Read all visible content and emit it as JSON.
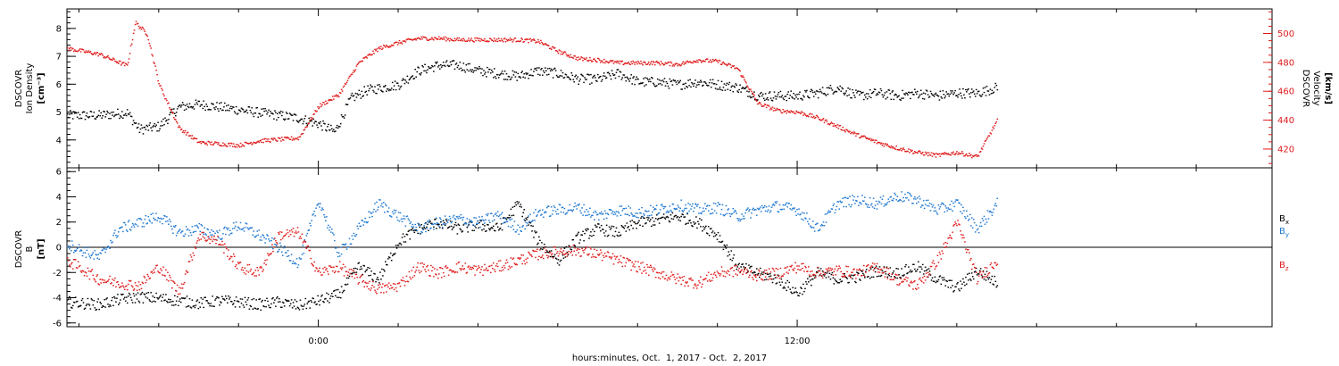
{
  "time_axis": {
    "label": "hours:minutes, Oct.  1, 2017 - Oct.  2, 2017",
    "tick_labels": [
      "0:00",
      "12:00"
    ],
    "range_hours": [
      -6.3,
      23.9
    ],
    "major_ticks_hours": [
      0,
      12
    ],
    "minor_step_hours": 2,
    "data_end_hours": 17.0
  },
  "panels": {
    "top": {
      "left_label": [
        "DSCOVR",
        "Ion Density",
        "[cm⁻³]"
      ],
      "right_label": [
        "DSCOVR",
        "Velocity",
        "[km/s]"
      ]
    },
    "bottom": {
      "left_label": [
        "DSCOVR",
        "B",
        "[nT]"
      ],
      "legend": [
        {
          "text": "B",
          "sub": "x",
          "color": "#000000"
        },
        {
          "text": "B",
          "sub": "y",
          "color": "#1f78d1"
        },
        {
          "text": "B",
          "sub": "z",
          "color": "#e01a1a"
        }
      ]
    }
  },
  "chart_data": [
    {
      "type": "scatter",
      "title": "",
      "xlabel": "hours:minutes, Oct.  1, 2017 - Oct.  2, 2017",
      "series": [
        {
          "name": "Ion Density",
          "axis": "left",
          "ylabel": "DSCOVR Ion Density [cm⁻³]",
          "ylim": [
            3.0,
            8.7
          ],
          "yticks": [
            4,
            5,
            6,
            7,
            8
          ],
          "color": "#000000",
          "x": [
            -6.3,
            -5.5,
            -4.8,
            -4.5,
            -4.0,
            -3.5,
            -3.0,
            -2.5,
            -2.0,
            -1.5,
            -1.0,
            -0.5,
            0.0,
            0.4,
            0.8,
            1.2,
            1.6,
            2.0,
            2.5,
            3.0,
            3.5,
            4.0,
            4.5,
            5.0,
            5.5,
            6.0,
            6.5,
            7.0,
            7.5,
            8.0,
            8.5,
            9.0,
            9.5,
            10.0,
            10.5,
            11.0,
            11.5,
            12.0,
            12.5,
            13.0,
            13.5,
            14.0,
            14.5,
            15.0,
            15.5,
            16.0,
            16.5,
            17.0
          ],
          "y": [
            4.9,
            4.9,
            5.0,
            4.4,
            4.5,
            5.2,
            5.3,
            5.2,
            5.1,
            5.0,
            4.9,
            4.8,
            4.6,
            4.3,
            5.5,
            5.8,
            5.9,
            6.0,
            6.5,
            6.7,
            6.7,
            6.5,
            6.4,
            6.3,
            6.5,
            6.4,
            6.2,
            6.2,
            6.4,
            6.1,
            6.1,
            6.0,
            6.1,
            6.0,
            5.9,
            5.6,
            5.6,
            5.6,
            5.7,
            5.9,
            5.6,
            5.7,
            5.6,
            5.7,
            5.6,
            5.7,
            5.7,
            5.9
          ]
        },
        {
          "name": "Velocity",
          "axis": "right",
          "ylabel": "DSCOVR Velocity [km/s]",
          "ylim": [
            407,
            517
          ],
          "yticks": [
            420,
            440,
            460,
            480,
            500
          ],
          "color": "#e01a1a",
          "x": [
            -6.3,
            -5.5,
            -4.8,
            -4.6,
            -4.3,
            -4.0,
            -3.5,
            -3.0,
            -2.5,
            -2.0,
            -1.5,
            -1.0,
            -0.5,
            0.0,
            0.5,
            1.0,
            1.5,
            2.0,
            2.5,
            3.0,
            3.5,
            4.0,
            4.5,
            5.0,
            5.5,
            6.0,
            6.5,
            7.0,
            7.5,
            8.0,
            8.5,
            9.0,
            9.5,
            10.0,
            10.5,
            11.0,
            11.5,
            12.0,
            12.5,
            13.0,
            13.5,
            14.0,
            14.5,
            15.0,
            15.5,
            16.0,
            16.5,
            17.0
          ],
          "y": [
            490,
            486,
            478,
            508,
            500,
            465,
            435,
            425,
            424,
            423,
            426,
            427,
            428,
            450,
            458,
            480,
            490,
            494,
            497,
            497,
            496,
            496,
            496,
            496,
            495,
            488,
            483,
            482,
            480,
            480,
            480,
            479,
            482,
            481,
            476,
            452,
            447,
            446,
            442,
            436,
            430,
            425,
            421,
            418,
            416,
            418,
            415,
            440
          ]
        }
      ]
    },
    {
      "type": "scatter",
      "title": "",
      "xlabel": "hours:minutes, Oct.  1, 2017 - Oct.  2, 2017",
      "ylabel": "DSCOVR B [nT]",
      "ylim": [
        -6.3,
        6.3
      ],
      "yticks": [
        -6,
        -4,
        -2,
        0,
        2,
        4,
        6
      ],
      "zero_line": true,
      "series": [
        {
          "name": "B",
          "sub": "x",
          "color": "#000000",
          "x": [
            -6.3,
            -5.5,
            -5.0,
            -4.5,
            -4.0,
            -3.5,
            -3.0,
            -2.5,
            -2.0,
            -1.5,
            -1.0,
            -0.5,
            0.0,
            0.5,
            1.0,
            1.5,
            2.0,
            2.5,
            3.0,
            3.5,
            4.0,
            4.5,
            5.0,
            5.5,
            6.0,
            6.5,
            7.0,
            7.5,
            8.0,
            8.5,
            9.0,
            9.5,
            10.0,
            10.5,
            11.0,
            11.5,
            12.0,
            12.5,
            13.0,
            13.5,
            14.0,
            14.5,
            15.0,
            15.5,
            16.0,
            16.5,
            17.0
          ],
          "y": [
            -4.3,
            -4.5,
            -4.1,
            -3.9,
            -4.0,
            -4.2,
            -4.4,
            -4.2,
            -4.3,
            -4.5,
            -4.3,
            -4.6,
            -4.2,
            -3.7,
            -1.5,
            -2.5,
            0.5,
            1.5,
            2.0,
            1.5,
            1.8,
            1.5,
            3.5,
            0.5,
            -1.0,
            0.8,
            1.5,
            1.2,
            2.0,
            2.2,
            2.5,
            2.0,
            1.0,
            -1.5,
            -2.0,
            -2.5,
            -3.6,
            -2.0,
            -2.5,
            -2.3,
            -1.8,
            -2.0,
            -1.5,
            -2.5,
            -3.2,
            -1.8,
            -2.8
          ]
        },
        {
          "name": "B",
          "sub": "y",
          "color": "#1f78d1",
          "x": [
            -6.3,
            -5.5,
            -5.0,
            -4.5,
            -4.0,
            -3.5,
            -3.0,
            -2.5,
            -2.0,
            -1.5,
            -1.0,
            -0.5,
            0.0,
            0.5,
            1.0,
            1.5,
            2.0,
            2.5,
            3.0,
            3.5,
            4.0,
            4.5,
            5.0,
            5.5,
            6.0,
            6.5,
            7.0,
            7.5,
            8.0,
            8.5,
            9.0,
            9.5,
            10.0,
            10.5,
            11.0,
            11.5,
            12.0,
            12.5,
            13.0,
            13.5,
            14.0,
            14.5,
            15.0,
            15.5,
            16.0,
            16.5,
            17.0
          ],
          "y": [
            0.3,
            -0.8,
            1.5,
            2.0,
            2.5,
            1.2,
            1.5,
            1.0,
            1.8,
            1.0,
            0.0,
            -1.2,
            3.8,
            -0.5,
            1.5,
            3.5,
            2.5,
            1.5,
            2.0,
            2.3,
            2.0,
            2.6,
            1.5,
            2.8,
            3.0,
            3.2,
            2.5,
            3.0,
            2.8,
            3.0,
            3.4,
            3.0,
            3.2,
            2.5,
            3.0,
            3.3,
            3.0,
            1.5,
            3.5,
            3.8,
            3.5,
            4.1,
            3.8,
            3.0,
            3.5,
            1.5,
            3.5
          ]
        },
        {
          "name": "B",
          "sub": "z",
          "color": "#e01a1a",
          "x": [
            -6.3,
            -5.5,
            -5.0,
            -4.5,
            -4.0,
            -3.5,
            -3.0,
            -2.5,
            -2.0,
            -1.5,
            -1.0,
            -0.5,
            0.0,
            0.5,
            1.0,
            1.5,
            2.0,
            2.5,
            3.0,
            3.5,
            4.0,
            4.5,
            5.0,
            5.5,
            6.0,
            6.5,
            7.0,
            7.5,
            8.0,
            8.5,
            9.0,
            9.5,
            10.0,
            10.5,
            11.0,
            11.5,
            12.0,
            12.5,
            13.0,
            13.5,
            14.0,
            14.5,
            15.0,
            15.5,
            16.0,
            16.5,
            17.0
          ],
          "y": [
            -1.0,
            -2.5,
            -2.8,
            -3.0,
            -1.5,
            -3.5,
            1.0,
            0.5,
            -1.5,
            -2.0,
            1.0,
            1.2,
            -2.0,
            -1.5,
            -2.5,
            -3.3,
            -3.0,
            -1.5,
            -2.0,
            -1.5,
            -1.8,
            -1.5,
            -1.0,
            -0.5,
            -0.3,
            -0.2,
            -0.5,
            -1.0,
            -1.5,
            -2.0,
            -2.5,
            -2.8,
            -2.0,
            -1.8,
            -2.2,
            -2.0,
            -1.5,
            -2.0,
            -1.8,
            -2.0,
            -1.5,
            -2.5,
            -3.0,
            -1.0,
            2.0,
            -2.5,
            -1.0
          ]
        }
      ]
    }
  ]
}
